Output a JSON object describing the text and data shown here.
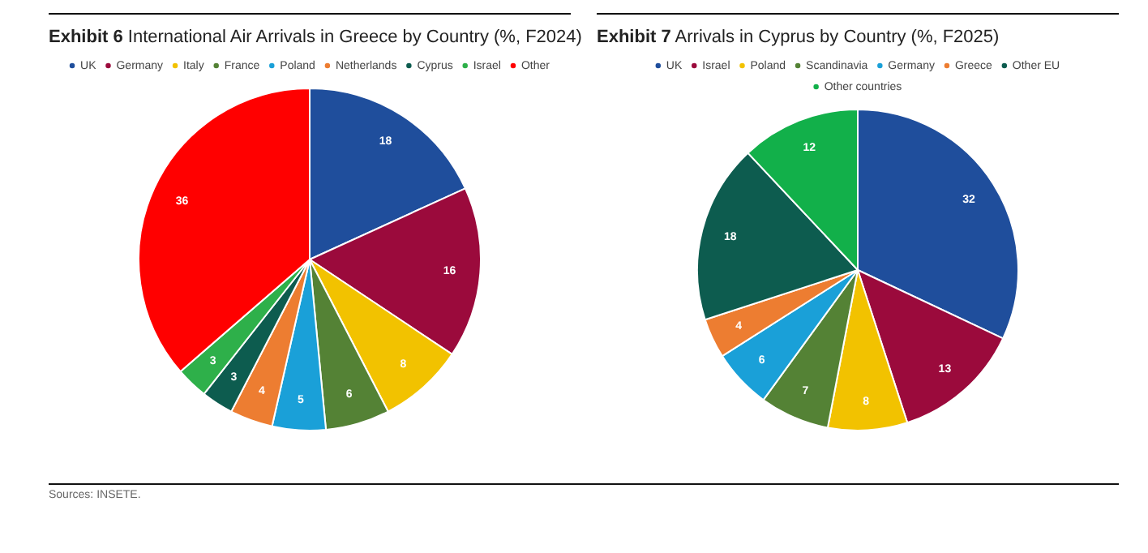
{
  "chart_data": [
    {
      "type": "pie",
      "title": "Exhibit 6 International Air Arrivals in Greece by Country (%, F2024)",
      "categories": [
        "UK",
        "Germany",
        "Italy",
        "France",
        "Poland",
        "Netherlands",
        "Cyprus",
        "Israel",
        "Other"
      ],
      "values": [
        18,
        16,
        8,
        6,
        5,
        4,
        3,
        3,
        36
      ],
      "colors": [
        "#1f4e9c",
        "#9b0a3c",
        "#f2c200",
        "#548235",
        "#1aa0d8",
        "#ed7d31",
        "#0d5c4f",
        "#2eb04a",
        "#ff0000"
      ],
      "data_labels": true,
      "legend": "top"
    },
    {
      "type": "pie",
      "title": "Exhibit 7 Arrivals in Cyprus by Country (%, F2025)",
      "categories": [
        "UK",
        "Israel",
        "Poland",
        "Scandinavia",
        "Germany",
        "Greece",
        "Other EU",
        "Other countries"
      ],
      "values": [
        32,
        13,
        8,
        7,
        6,
        4,
        18,
        12
      ],
      "colors": [
        "#1f4e9c",
        "#9b0a3c",
        "#f2c200",
        "#548235",
        "#1aa0d8",
        "#ed7d31",
        "#0d5c4f",
        "#12b04a"
      ],
      "data_labels": true,
      "legend": "top",
      "annotations": [
        "Sources: INSETE."
      ]
    }
  ]
}
